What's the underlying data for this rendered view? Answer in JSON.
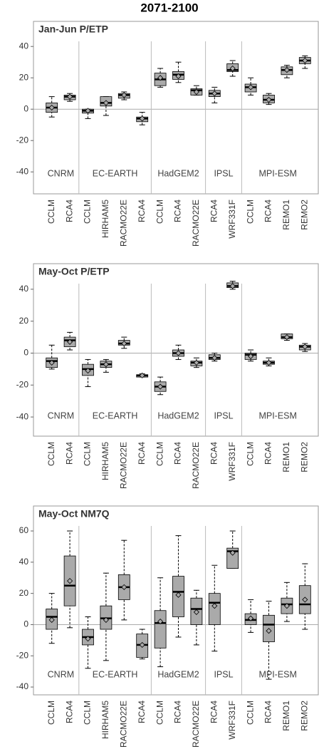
{
  "title": "2071-2100",
  "chart_data": [
    {
      "type": "box",
      "title": "Jan-Jun P/ETP",
      "ylim": [
        -54,
        56
      ],
      "yticks": [
        -40,
        -20,
        0,
        20,
        40
      ],
      "hline": 0,
      "color": "#aaaaaa",
      "groups": [
        {
          "name": "CNRM",
          "boxes": [
            {
              "category": "CCLM",
              "min": -5,
              "q1": -2,
              "median": 1,
              "q3": 4,
              "max": 8,
              "mean": 1
            },
            {
              "category": "RCA4",
              "min": 5,
              "q1": 6,
              "median": 8,
              "q3": 9,
              "max": 10,
              "mean": 8
            }
          ]
        },
        {
          "name": "EC-EARTH",
          "boxes": [
            {
              "category": "CCLM",
              "min": -6,
              "q1": -2.5,
              "median": -1,
              "q3": 0,
              "max": 0,
              "mean": -1
            },
            {
              "category": "HIRHAM5",
              "min": -4,
              "q1": 2,
              "median": 4,
              "q3": 8,
              "max": 8,
              "mean": 4
            },
            {
              "category": "RACMO22E",
              "min": 6,
              "q1": 7,
              "median": 9,
              "q3": 10,
              "max": 11,
              "mean": 9
            },
            {
              "category": "RCA4",
              "min": -10,
              "q1": -8,
              "median": -6,
              "q3": -5,
              "max": -2,
              "mean": -6
            }
          ]
        },
        {
          "name": "HadGEM2",
          "boxes": [
            {
              "category": "CCLM",
              "min": 14,
              "q1": 15,
              "median": 19,
              "q3": 23,
              "max": 26,
              "mean": 20
            },
            {
              "category": "RCA4",
              "min": 17,
              "q1": 19,
              "median": 22,
              "q3": 24,
              "max": 30,
              "mean": 21
            },
            {
              "category": "RACMO22E",
              "min": 9,
              "q1": 9,
              "median": 12,
              "q3": 13,
              "max": 15,
              "mean": 11
            }
          ]
        },
        {
          "name": "IPSL",
          "boxes": [
            {
              "category": "RCA4",
              "min": 4,
              "q1": 8,
              "median": 10,
              "q3": 12,
              "max": 14,
              "mean": 10
            },
            {
              "category": "WRF331F",
              "min": 21,
              "q1": 24,
              "median": 25,
              "q3": 29,
              "max": 31,
              "mean": 26
            }
          ]
        },
        {
          "name": "MPI-ESM",
          "boxes": [
            {
              "category": "CCLM",
              "min": 9,
              "q1": 11,
              "median": 14,
              "q3": 16,
              "max": 20,
              "mean": 14
            },
            {
              "category": "RCA4",
              "min": 3,
              "q1": 4,
              "median": 6,
              "q3": 9,
              "max": 10,
              "mean": 6
            },
            {
              "category": "REMO1",
              "min": 20,
              "q1": 22,
              "median": 25,
              "q3": 27,
              "max": 28,
              "mean": 25
            },
            {
              "category": "REMO2",
              "min": 26,
              "q1": 29,
              "median": 31,
              "q3": 33,
              "max": 34,
              "mean": 31
            }
          ]
        }
      ]
    },
    {
      "type": "box",
      "title": "May-Oct P/ETP",
      "ylim": [
        -52,
        56
      ],
      "yticks": [
        -40,
        -20,
        0,
        20,
        40
      ],
      "hline": 0,
      "color": "#aaaaaa",
      "groups": [
        {
          "name": "CNRM",
          "boxes": [
            {
              "category": "CCLM",
              "min": -10,
              "q1": -9,
              "median": -5,
              "q3": -3,
              "max": 5,
              "mean": -6
            },
            {
              "category": "RCA4",
              "min": 2,
              "q1": 4,
              "median": 8,
              "q3": 10,
              "max": 13,
              "mean": 7
            }
          ]
        },
        {
          "name": "EC-EARTH",
          "boxes": [
            {
              "category": "CCLM",
              "min": -21,
              "q1": -14,
              "median": -10,
              "q3": -7,
              "max": -4,
              "mean": -11
            },
            {
              "category": "HIRHAM5",
              "min": -12,
              "q1": -9,
              "median": -7,
              "q3": -5,
              "max": -4,
              "mean": -7
            },
            {
              "category": "RACMO22E",
              "min": 3,
              "q1": 5,
              "median": 6,
              "q3": 8,
              "max": 10,
              "mean": 6
            },
            {
              "category": "RCA4",
              "min": -15,
              "q1": -15,
              "median": -14,
              "q3": -13.5,
              "max": -13,
              "mean": -14
            }
          ]
        },
        {
          "name": "HadGEM2",
          "boxes": [
            {
              "category": "CCLM",
              "min": -26,
              "q1": -24,
              "median": -21,
              "q3": -18,
              "max": -15,
              "mean": -21
            },
            {
              "category": "RCA4",
              "min": -4,
              "q1": -2,
              "median": 0,
              "q3": 2,
              "max": 5,
              "mean": 0
            },
            {
              "category": "RACMO22E",
              "min": -9,
              "q1": -8,
              "median": -6,
              "q3": -5,
              "max": -3,
              "mean": -6
            }
          ]
        },
        {
          "name": "IPSL",
          "boxes": [
            {
              "category": "RCA4",
              "min": -5,
              "q1": -4,
              "median": -3,
              "q3": -1,
              "max": 0,
              "mean": -3
            },
            {
              "category": "WRF331F",
              "min": 40,
              "q1": 41,
              "median": 42,
              "q3": 44,
              "max": 45,
              "mean": 42
            }
          ]
        },
        {
          "name": "MPI-ESM",
          "boxes": [
            {
              "category": "CCLM",
              "min": -5,
              "q1": -4,
              "median": -1,
              "q3": 0,
              "max": 2,
              "mean": -2
            },
            {
              "category": "RCA4",
              "min": -8,
              "q1": -7,
              "median": -6,
              "q3": -5,
              "max": -3,
              "mean": -6
            },
            {
              "category": "REMO1",
              "min": 8,
              "q1": 9,
              "median": 10,
              "q3": 12,
              "max": 12,
              "mean": 10
            },
            {
              "category": "REMO2",
              "min": 1,
              "q1": 2,
              "median": 4,
              "q3": 5,
              "max": 6,
              "mean": 4
            }
          ]
        }
      ]
    },
    {
      "type": "box",
      "title": "May-Oct NM7Q",
      "ylim": [
        -45,
        76
      ],
      "yticks": [
        -40,
        -20,
        0,
        20,
        40,
        60
      ],
      "hline": 0,
      "color": "#aaaaaa",
      "groups": [
        {
          "name": "CNRM",
          "boxes": [
            {
              "category": "CCLM",
              "min": -12,
              "q1": -3,
              "median": 5,
              "q3": 10,
              "max": 20,
              "mean": 3
            },
            {
              "category": "RCA4",
              "min": -2,
              "q1": 12,
              "median": 25,
              "q3": 44,
              "max": 60,
              "mean": 28
            }
          ]
        },
        {
          "name": "EC-EARTH",
          "boxes": [
            {
              "category": "CCLM",
              "min": -28,
              "q1": -13,
              "median": -8,
              "q3": -3,
              "max": 5,
              "mean": -9
            },
            {
              "category": "HIRHAM5",
              "min": -23,
              "q1": -3,
              "median": 4,
              "q3": 12,
              "max": 33,
              "mean": 3
            },
            {
              "category": "RACMO22E",
              "min": 3,
              "q1": 16,
              "median": 24,
              "q3": 32,
              "max": 54,
              "mean": 24
            },
            {
              "category": "RCA4",
              "min": -22,
              "q1": -21,
              "median": -13,
              "q3": -6,
              "max": -3,
              "mean": -13
            }
          ]
        },
        {
          "name": "HadGEM2",
          "boxes": [
            {
              "category": "CCLM",
              "min": -27,
              "q1": -15,
              "median": 1,
              "q3": 9,
              "max": 30,
              "mean": 2
            },
            {
              "category": "RCA4",
              "min": -8,
              "q1": 5,
              "median": 21,
              "q3": 31,
              "max": 57,
              "mean": 19
            },
            {
              "category": "RACMO22E",
              "min": -13,
              "q1": 0,
              "median": 10,
              "q3": 17,
              "max": 22,
              "mean": 8
            }
          ]
        },
        {
          "name": "IPSL",
          "boxes": [
            {
              "category": "RCA4",
              "min": -17,
              "q1": 0,
              "median": 14,
              "q3": 20,
              "max": 38,
              "mean": 12
            },
            {
              "category": "WRF331F",
              "min": 36,
              "q1": 36,
              "median": 47,
              "q3": 49,
              "max": 60,
              "mean": 46
            }
          ]
        },
        {
          "name": "MPI-ESM",
          "boxes": [
            {
              "category": "CCLM",
              "min": -5,
              "q1": 0,
              "median": 3,
              "q3": 7,
              "max": 16,
              "mean": 4
            },
            {
              "category": "RCA4",
              "min": -35,
              "q1": -11,
              "median": 0,
              "q3": 6,
              "max": 15,
              "mean": -4
            },
            {
              "category": "REMO1",
              "min": 2,
              "q1": 7,
              "median": 13,
              "q3": 17,
              "max": 27,
              "mean": 12
            },
            {
              "category": "REMO2",
              "min": -3,
              "q1": 7,
              "median": 13,
              "q3": 25,
              "max": 39,
              "mean": 16
            }
          ]
        }
      ]
    }
  ]
}
